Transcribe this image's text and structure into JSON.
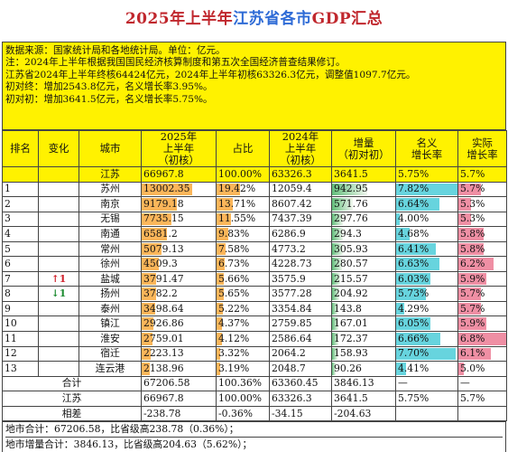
{
  "title": {
    "part1": "2025年上半年",
    "part2": "江苏省各市",
    "part3": "GDP汇总"
  },
  "notes": [
    "数据来源：国家统计局和各地统计局。单位：亿元。",
    "注：2024年上半年根据我国国民经济核算制度和第五次全国经济普查结果修订。",
    "江苏省2024年上半年终核64424亿元，2024年上半年初核63326.3亿元，调整值1097.7亿元。",
    "初对终：增加2543.8亿元，名义增长率3.95%。",
    "初对初：增加3641.5亿元，名义增长率5.75%。"
  ],
  "headers": [
    "排名",
    "变化",
    "城市",
    "2025年\n上半年\n（初核）",
    "占比",
    "2024年\n上半年\n（初核）",
    "增量\n（初对初）",
    "名义\n增长率",
    "实际\n增长率"
  ],
  "province_row": {
    "rank": "",
    "change": "",
    "city": "江苏",
    "gdp2025": "66967.8",
    "share": "100.00%",
    "gdp2024": "63326.3",
    "increase": "3641.5",
    "nominal": "5.75%",
    "real": "5.7%"
  },
  "rows": [
    {
      "rank": "1",
      "change": "",
      "city": "苏州",
      "gdp2025": "13002.35",
      "share": "19.42%",
      "gdp2024": "12059.4",
      "increase": "942.95",
      "nominal": "7.82%",
      "real": "5.7%"
    },
    {
      "rank": "2",
      "change": "",
      "city": "南京",
      "gdp2025": "9179.18",
      "share": "13.71%",
      "gdp2024": "8607.42",
      "increase": "571.76",
      "nominal": "6.64%",
      "real": "5.3%"
    },
    {
      "rank": "3",
      "change": "",
      "city": "无锡",
      "gdp2025": "7735.15",
      "share": "11.55%",
      "gdp2024": "7437.39",
      "increase": "297.76",
      "nominal": "4.00%",
      "real": "5.3%"
    },
    {
      "rank": "4",
      "change": "",
      "city": "南通",
      "gdp2025": "6581.2",
      "share": "9.83%",
      "gdp2024": "6286.9",
      "increase": "294.3",
      "nominal": "4.68%",
      "real": "5.8%"
    },
    {
      "rank": "5",
      "change": "",
      "city": "常州",
      "gdp2025": "5079.13",
      "share": "7.58%",
      "gdp2024": "4773.2",
      "increase": "305.93",
      "nominal": "6.41%",
      "real": "5.8%"
    },
    {
      "rank": "6",
      "change": "",
      "city": "徐州",
      "gdp2025": "4509.3",
      "share": "6.73%",
      "gdp2024": "4228.73",
      "increase": "280.57",
      "nominal": "6.63%",
      "real": "6.2%"
    },
    {
      "rank": "7",
      "change": "↑1",
      "city": "盐城",
      "gdp2025": "3791.47",
      "share": "5.66%",
      "gdp2024": "3575.9",
      "increase": "215.57",
      "nominal": "6.03%",
      "real": "5.9%"
    },
    {
      "rank": "8",
      "change": "↓1",
      "city": "扬州",
      "gdp2025": "3782.2",
      "share": "5.65%",
      "gdp2024": "3577.28",
      "increase": "204.92",
      "nominal": "5.73%",
      "real": "5.7%"
    },
    {
      "rank": "9",
      "change": "",
      "city": "泰州",
      "gdp2025": "3498.64",
      "share": "5.22%",
      "gdp2024": "3354.84",
      "increase": "143.8",
      "nominal": "4.29%",
      "real": "5.7%"
    },
    {
      "rank": "10",
      "change": "",
      "city": "镇江",
      "gdp2025": "2926.86",
      "share": "4.37%",
      "gdp2024": "2759.85",
      "increase": "167.01",
      "nominal": "6.05%",
      "real": "5.9%"
    },
    {
      "rank": "11",
      "change": "",
      "city": "淮安",
      "gdp2025": "2759.01",
      "share": "4.12%",
      "gdp2024": "2586.64",
      "increase": "172.37",
      "nominal": "6.66%",
      "real": "6.8%"
    },
    {
      "rank": "12",
      "change": "",
      "city": "宿迁",
      "gdp2025": "2223.13",
      "share": "3.32%",
      "gdp2024": "2064.2",
      "increase": "158.93",
      "nominal": "7.70%",
      "real": "6.1%"
    },
    {
      "rank": "13",
      "change": "",
      "city": "连云港",
      "gdp2025": "2138.96",
      "share": "3.19%",
      "gdp2024": "2048.7",
      "increase": "90.26",
      "nominal": "4.41%",
      "real": "5.0%"
    }
  ],
  "summary_rows": [
    {
      "label": "合计",
      "gdp2025": "67206.58",
      "share": "100.36%",
      "gdp2024": "63360.45",
      "increase": "3846.13",
      "nominal": "—",
      "real": "—"
    },
    {
      "label": "江苏",
      "gdp2025": "66967.8",
      "share": "100.00%",
      "gdp2024": "63326.3",
      "increase": "3641.5",
      "nominal": "5.75%",
      "real": "5.7%"
    },
    {
      "label": "相差",
      "gdp2025": "-238.78",
      "share": "-0.36%",
      "gdp2024": "-34.15",
      "increase": "-204.63",
      "nominal": "",
      "real": ""
    }
  ],
  "footer": [
    "地市合计：67206.58，比省级高238.78（0.36%）；",
    "地市增量合计：3846.13，比省级高204.63（5.62%）；"
  ],
  "colors": {
    "highlight": "#fff200",
    "title_red": "#c0272d",
    "title_blue": "#2e6bd6",
    "bar_orange": "#fbb65a",
    "bar_teal": "#67d4de",
    "bar_pink": "#ef8fa4",
    "bar_green": "#63be7b"
  }
}
